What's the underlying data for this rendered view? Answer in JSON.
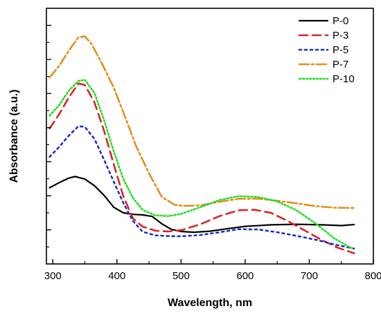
{
  "chart_data": {
    "type": "line",
    "xlabel": "Wavelength, nm",
    "ylabel": "Absorbance (a.u.)",
    "xlim": [
      290,
      800
    ],
    "ylim": [
      0,
      1
    ],
    "x_ticks": [
      300,
      400,
      500,
      600,
      700,
      800
    ],
    "y_ticks_labeled": false,
    "grid": false,
    "legend": {
      "placement": "top-right"
    },
    "series": [
      {
        "name": "P-0",
        "color": "#000000",
        "dash": "solid",
        "points": [
          [
            295,
            0.298
          ],
          [
            310,
            0.318
          ],
          [
            325,
            0.336
          ],
          [
            335,
            0.342
          ],
          [
            350,
            0.332
          ],
          [
            365,
            0.306
          ],
          [
            380,
            0.268
          ],
          [
            395,
            0.222
          ],
          [
            410,
            0.2
          ],
          [
            425,
            0.194
          ],
          [
            440,
            0.192
          ],
          [
            455,
            0.186
          ],
          [
            470,
            0.157
          ],
          [
            485,
            0.135
          ],
          [
            500,
            0.127
          ],
          [
            520,
            0.124
          ],
          [
            545,
            0.128
          ],
          [
            570,
            0.137
          ],
          [
            600,
            0.147
          ],
          [
            640,
            0.153
          ],
          [
            680,
            0.155
          ],
          [
            720,
            0.153
          ],
          [
            750,
            0.15
          ],
          [
            770,
            0.154
          ]
        ]
      },
      {
        "name": "P-3",
        "color": "#dd2222",
        "dash": "12,7",
        "points": [
          [
            295,
            0.53
          ],
          [
            310,
            0.586
          ],
          [
            325,
            0.652
          ],
          [
            340,
            0.706
          ],
          [
            350,
            0.7
          ],
          [
            365,
            0.632
          ],
          [
            380,
            0.52
          ],
          [
            395,
            0.39
          ],
          [
            410,
            0.264
          ],
          [
            425,
            0.178
          ],
          [
            440,
            0.146
          ],
          [
            460,
            0.13
          ],
          [
            480,
            0.127
          ],
          [
            500,
            0.132
          ],
          [
            530,
            0.155
          ],
          [
            560,
            0.187
          ],
          [
            590,
            0.21
          ],
          [
            615,
            0.212
          ],
          [
            640,
            0.2
          ],
          [
            665,
            0.17
          ],
          [
            690,
            0.135
          ],
          [
            720,
            0.093
          ],
          [
            745,
            0.063
          ],
          [
            770,
            0.042
          ]
        ]
      },
      {
        "name": "P-5",
        "color": "#1a2fc8",
        "dash": "3,5",
        "points": [
          [
            295,
            0.419
          ],
          [
            310,
            0.458
          ],
          [
            325,
            0.502
          ],
          [
            340,
            0.539
          ],
          [
            350,
            0.536
          ],
          [
            365,
            0.489
          ],
          [
            380,
            0.407
          ],
          [
            395,
            0.322
          ],
          [
            410,
            0.238
          ],
          [
            425,
            0.168
          ],
          [
            440,
            0.126
          ],
          [
            460,
            0.112
          ],
          [
            480,
            0.109
          ],
          [
            500,
            0.108
          ],
          [
            530,
            0.113
          ],
          [
            560,
            0.124
          ],
          [
            590,
            0.136
          ],
          [
            620,
            0.135
          ],
          [
            650,
            0.124
          ],
          [
            680,
            0.11
          ],
          [
            710,
            0.095
          ],
          [
            740,
            0.076
          ],
          [
            770,
            0.06
          ]
        ]
      },
      {
        "name": "P-7",
        "color": "#e0901a",
        "dash": "14,4,3,4",
        "points": [
          [
            295,
            0.73
          ],
          [
            310,
            0.775
          ],
          [
            325,
            0.835
          ],
          [
            340,
            0.887
          ],
          [
            350,
            0.89
          ],
          [
            360,
            0.862
          ],
          [
            375,
            0.792
          ],
          [
            395,
            0.69
          ],
          [
            415,
            0.56
          ],
          [
            430,
            0.46
          ],
          [
            450,
            0.355
          ],
          [
            470,
            0.262
          ],
          [
            490,
            0.231
          ],
          [
            505,
            0.227
          ],
          [
            530,
            0.229
          ],
          [
            560,
            0.243
          ],
          [
            590,
            0.255
          ],
          [
            620,
            0.255
          ],
          [
            650,
            0.247
          ],
          [
            680,
            0.237
          ],
          [
            710,
            0.226
          ],
          [
            740,
            0.22
          ],
          [
            770,
            0.219
          ]
        ]
      },
      {
        "name": "P-10",
        "color": "#22dd22",
        "dash": "2,3",
        "points": [
          [
            295,
            0.58
          ],
          [
            310,
            0.622
          ],
          [
            325,
            0.678
          ],
          [
            340,
            0.716
          ],
          [
            350,
            0.72
          ],
          [
            365,
            0.668
          ],
          [
            380,
            0.562
          ],
          [
            395,
            0.44
          ],
          [
            410,
            0.332
          ],
          [
            425,
            0.258
          ],
          [
            440,
            0.212
          ],
          [
            460,
            0.19
          ],
          [
            480,
            0.187
          ],
          [
            500,
            0.196
          ],
          [
            530,
            0.222
          ],
          [
            560,
            0.25
          ],
          [
            590,
            0.265
          ],
          [
            620,
            0.262
          ],
          [
            650,
            0.245
          ],
          [
            680,
            0.21
          ],
          [
            710,
            0.158
          ],
          [
            740,
            0.098
          ],
          [
            765,
            0.063
          ],
          [
            770,
            0.06
          ]
        ]
      }
    ]
  }
}
